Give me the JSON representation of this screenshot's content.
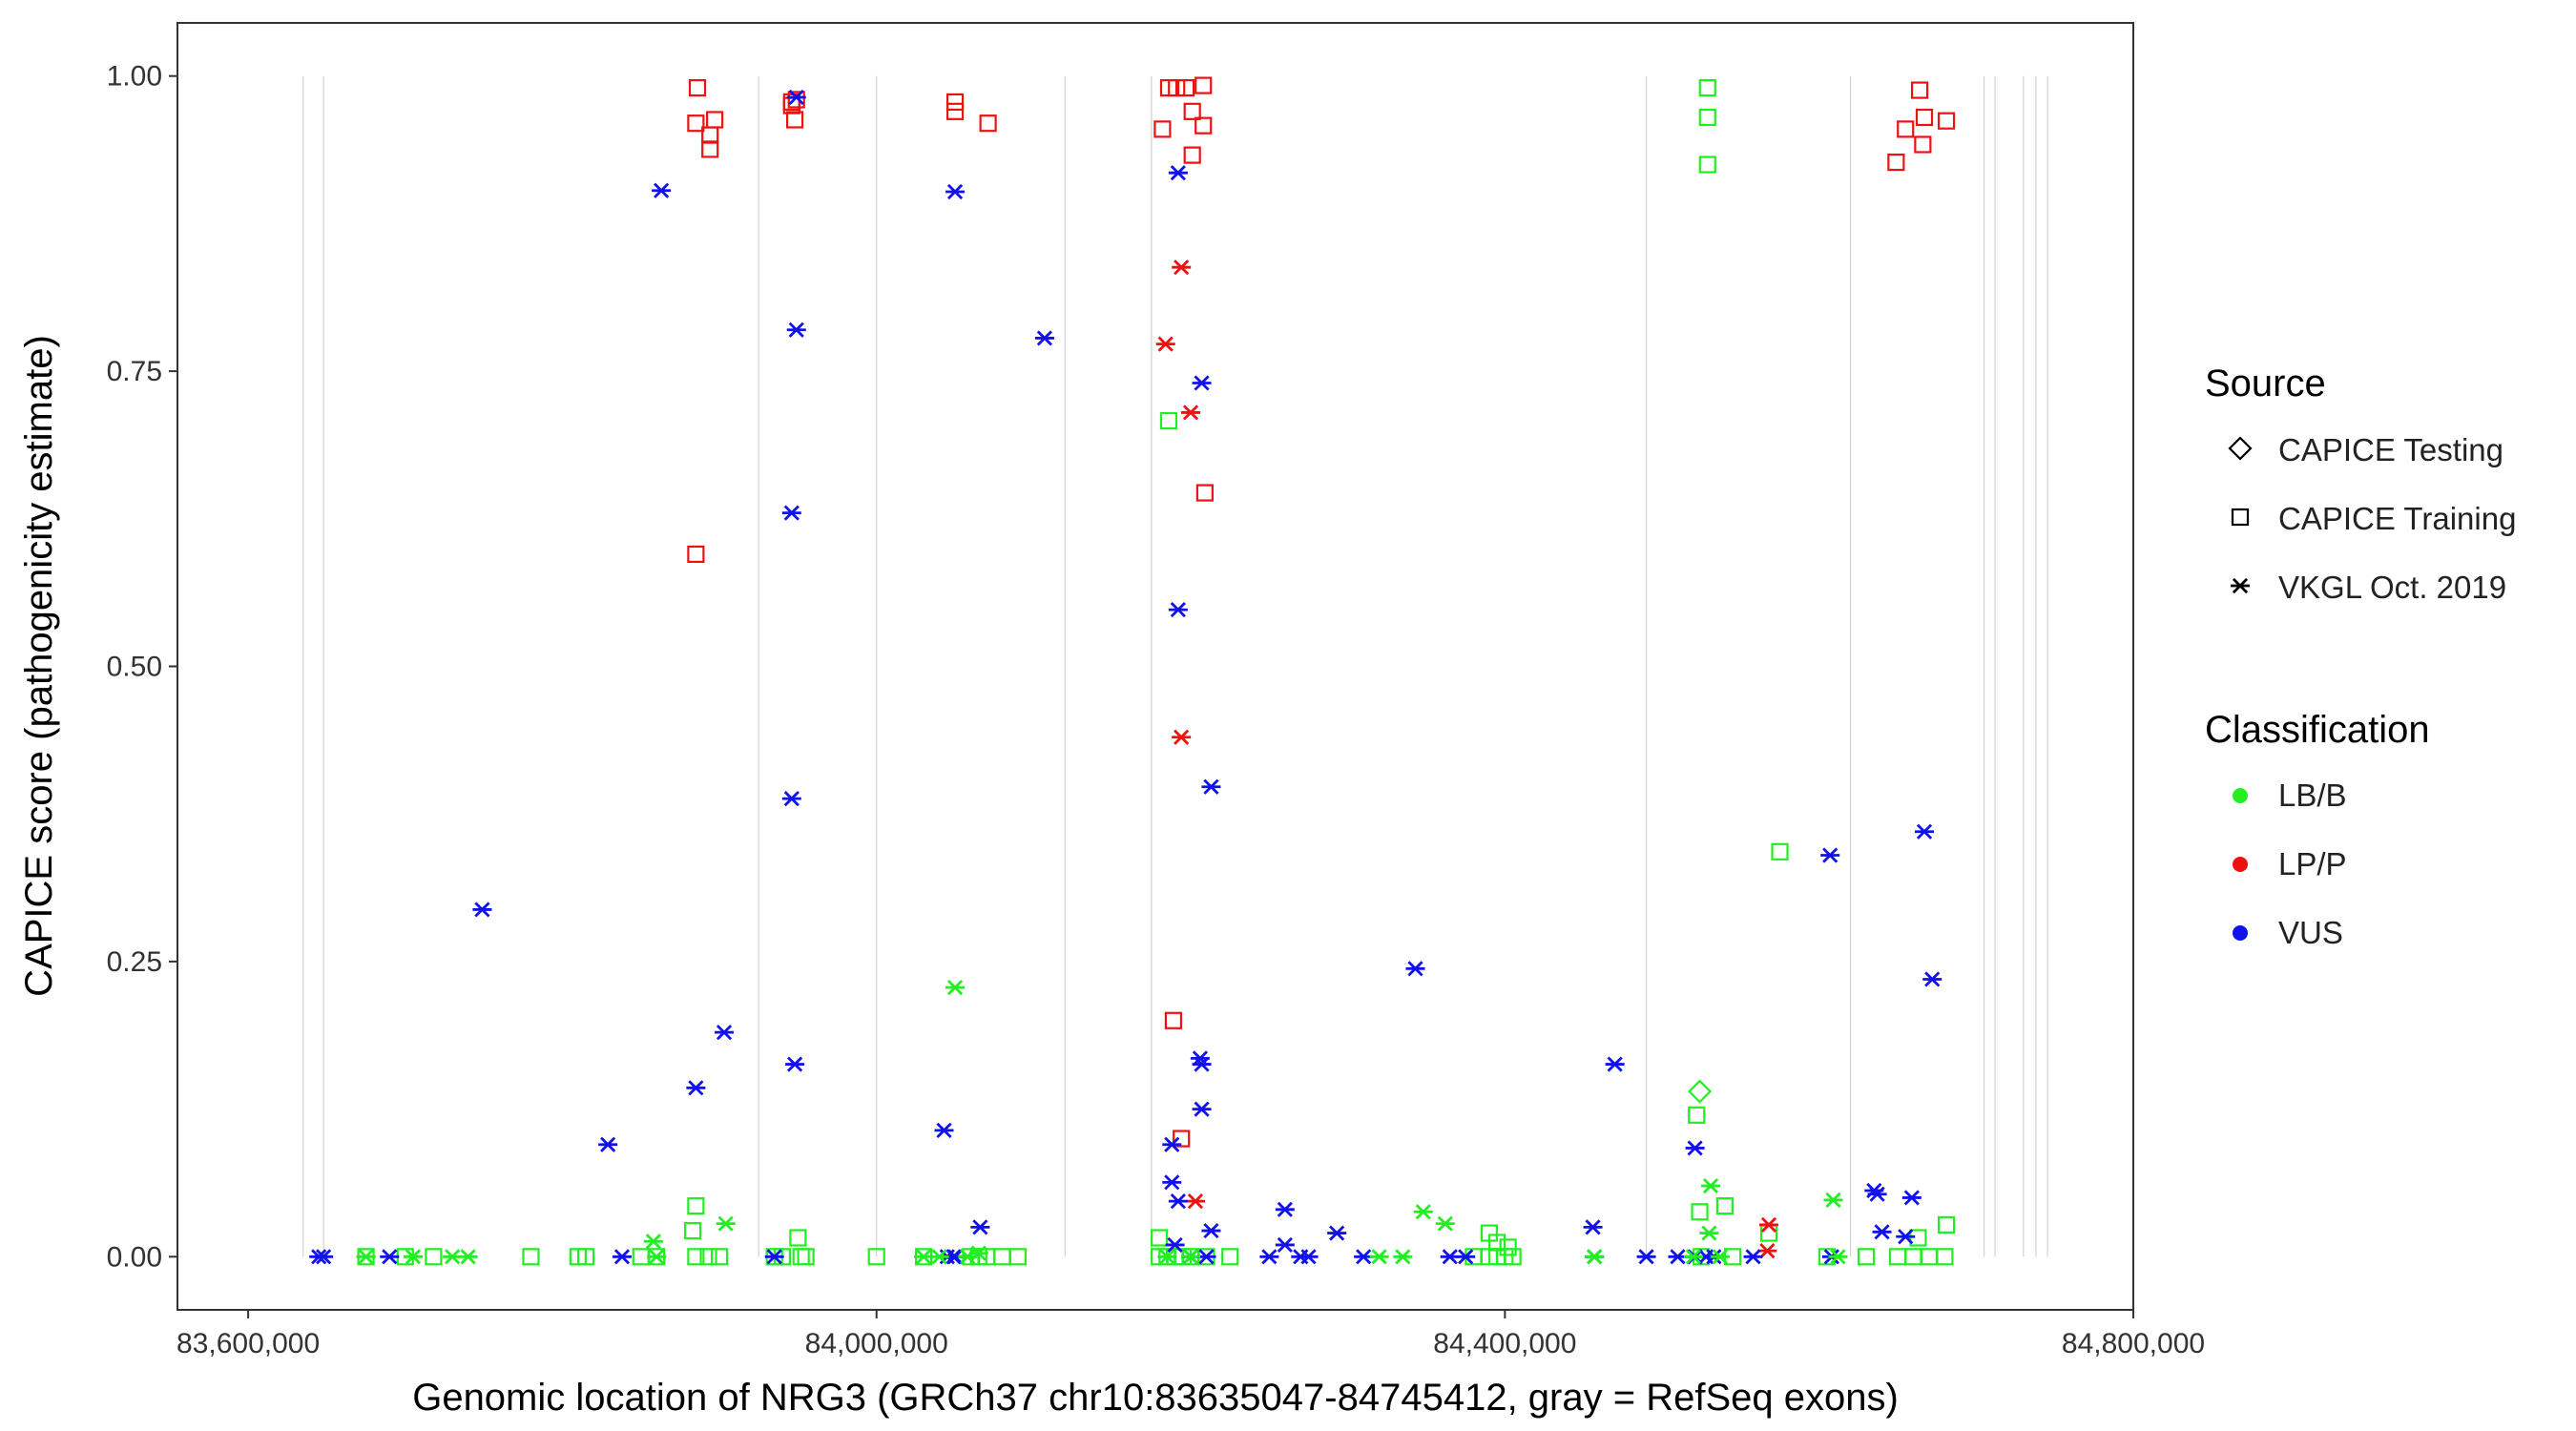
{
  "chart_data": {
    "type": "scatter",
    "title": "",
    "xlabel": "Genomic location of NRG3 (GRCh37 chr10:83635047-84745412, gray = RefSeq exons)",
    "ylabel": "CAPICE score (pathogenicity estimate)",
    "xlim": [
      83555000,
      84800000
    ],
    "ylim": [
      -0.045,
      1.045
    ],
    "xticks": [
      83600000,
      84000000,
      84400000,
      84800000
    ],
    "xtick_labels": [
      "83,600,000",
      "84,000,000",
      "84,400,000",
      "84,800,000"
    ],
    "yticks": [
      0,
      0.25,
      0.5,
      0.75,
      1.0
    ],
    "ytick_labels": [
      "0.00",
      "0.25",
      "0.50",
      "0.75",
      "1.00"
    ],
    "exon_lines": [
      83635047,
      83648000,
      83925000,
      84000000,
      84120000,
      84175000,
      84490000,
      84620000,
      84705000,
      84712000,
      84730000,
      84738000,
      84745412
    ],
    "legend": {
      "source_title": "Source",
      "source_entries": [
        {
          "label": "CAPICE Testing",
          "shape": "diamond"
        },
        {
          "label": "CAPICE Training",
          "shape": "square"
        },
        {
          "label": "VKGL Oct. 2019",
          "shape": "asterisk"
        }
      ],
      "class_title": "Classification",
      "class_entries": [
        {
          "label": "LB/B",
          "color": "#22ee22"
        },
        {
          "label": "LP/P",
          "color": "#ee1111"
        },
        {
          "label": "VUS",
          "color": "#1111ee"
        }
      ]
    },
    "colors": {
      "LB/B": "#22ee22",
      "LP/P": "#ee1111",
      "VUS": "#1111ee"
    },
    "points": [
      [
        "tr",
        "LP",
        83886000,
        0.99
      ],
      [
        "tr",
        "LP",
        83885000,
        0.96
      ],
      [
        "tr",
        "LP",
        83894000,
        0.95
      ],
      [
        "tr",
        "LP",
        83897000,
        0.963
      ],
      [
        "tr",
        "LP",
        83894000,
        0.938
      ],
      [
        "tr",
        "LP",
        83946000,
        0.978
      ],
      [
        "tr",
        "LP",
        83946000,
        0.975
      ],
      [
        "tr",
        "LP",
        83948000,
        0.963
      ],
      [
        "tr",
        "LP",
        83949000,
        0.98
      ],
      [
        "tr",
        "LP",
        84050000,
        0.978
      ],
      [
        "tr",
        "LP",
        84050000,
        0.97
      ],
      [
        "tr",
        "LP",
        84071000,
        0.96
      ],
      [
        "tr",
        "LP",
        84186000,
        0.99
      ],
      [
        "tr",
        "LP",
        84191000,
        0.99
      ],
      [
        "tr",
        "LP",
        84197000,
        0.99
      ],
      [
        "tr",
        "LP",
        84208000,
        0.992
      ],
      [
        "tr",
        "LP",
        84182000,
        0.955
      ],
      [
        "tr",
        "LP",
        84201000,
        0.97
      ],
      [
        "tr",
        "LP",
        84208000,
        0.958
      ],
      [
        "tr",
        "LP",
        84201000,
        0.933
      ],
      [
        "tr",
        "LP",
        84209000,
        0.647
      ],
      [
        "tr",
        "LP",
        84189000,
        0.2
      ],
      [
        "tr",
        "LP",
        84194000,
        0.1
      ],
      [
        "tr",
        "LP",
        83885000,
        0.595
      ],
      [
        "tr",
        "LP",
        84664000,
        0.988
      ],
      [
        "tr",
        "LP",
        84667000,
        0.965
      ],
      [
        "tr",
        "LP",
        84681000,
        0.962
      ],
      [
        "tr",
        "LP",
        84655000,
        0.955
      ],
      [
        "tr",
        "LP",
        84666000,
        0.942
      ],
      [
        "tr",
        "LP",
        84649000,
        0.927
      ],
      [
        "tr",
        "LB",
        84529000,
        0.99
      ],
      [
        "tr",
        "LB",
        84529000,
        0.965
      ],
      [
        "tr",
        "LB",
        84529000,
        0.925
      ],
      [
        "tr",
        "LB",
        84186000,
        0.708
      ],
      [
        "tr",
        "LB",
        84575000,
        0.343
      ],
      [
        "tr",
        "LB",
        84522000,
        0.12
      ],
      [
        "tr",
        "LB",
        84540000,
        0.043
      ],
      [
        "tr",
        "LB",
        84524000,
        0.038
      ],
      [
        "tr",
        "LB",
        83885000,
        0.043
      ],
      [
        "tr",
        "LB",
        83883000,
        0.022
      ],
      [
        "tr",
        "LB",
        83950000,
        0.016
      ],
      [
        "tr",
        "LB",
        84180000,
        0.016
      ],
      [
        "tr",
        "LB",
        84390000,
        0.02
      ],
      [
        "tr",
        "LB",
        84395000,
        0.012
      ],
      [
        "tr",
        "LB",
        84402000,
        0.008
      ],
      [
        "tr",
        "LB",
        84681000,
        0.027
      ],
      [
        "tr",
        "LB",
        84663000,
        0.016
      ],
      [
        "tr",
        "LB",
        84568000,
        0.02
      ],
      [
        "tr",
        "LB",
        83675000,
        0
      ],
      [
        "tr",
        "LB",
        83700000,
        0
      ],
      [
        "tr",
        "LB",
        83718000,
        0
      ],
      [
        "tr",
        "LB",
        83780000,
        0
      ],
      [
        "tr",
        "LB",
        83810000,
        0
      ],
      [
        "tr",
        "LB",
        83815000,
        0
      ],
      [
        "tr",
        "LB",
        83850000,
        0
      ],
      [
        "tr",
        "LB",
        83860000,
        0
      ],
      [
        "tr",
        "LB",
        83885000,
        0
      ],
      [
        "tr",
        "LB",
        83893000,
        0
      ],
      [
        "tr",
        "LB",
        83900000,
        0
      ],
      [
        "tr",
        "LB",
        83935000,
        0
      ],
      [
        "tr",
        "LB",
        83940000,
        0
      ],
      [
        "tr",
        "LB",
        83952000,
        0
      ],
      [
        "tr",
        "LB",
        83955000,
        0
      ],
      [
        "tr",
        "LB",
        84000000,
        0
      ],
      [
        "tr",
        "LB",
        84030000,
        0
      ],
      [
        "tr",
        "LB",
        84060000,
        0
      ],
      [
        "tr",
        "LB",
        84065000,
        0
      ],
      [
        "tr",
        "LB",
        84070000,
        0
      ],
      [
        "tr",
        "LB",
        84080000,
        0
      ],
      [
        "tr",
        "LB",
        84090000,
        0
      ],
      [
        "tr",
        "LB",
        84180000,
        0
      ],
      [
        "tr",
        "LB",
        84185000,
        0
      ],
      [
        "tr",
        "LB",
        84190000,
        0
      ],
      [
        "tr",
        "LB",
        84195000,
        0
      ],
      [
        "tr",
        "LB",
        84200000,
        0
      ],
      [
        "tr",
        "LB",
        84210000,
        0
      ],
      [
        "tr",
        "LB",
        84225000,
        0
      ],
      [
        "tr",
        "LB",
        84380000,
        0
      ],
      [
        "tr",
        "LB",
        84390000,
        0
      ],
      [
        "tr",
        "LB",
        84395000,
        0
      ],
      [
        "tr",
        "LB",
        84400000,
        0
      ],
      [
        "tr",
        "LB",
        84405000,
        0
      ],
      [
        "tr",
        "LB",
        84525000,
        0
      ],
      [
        "tr",
        "LB",
        84545000,
        0
      ],
      [
        "tr",
        "LB",
        84605000,
        0
      ],
      [
        "tr",
        "LB",
        84630000,
        0
      ],
      [
        "tr",
        "LB",
        84650000,
        0
      ],
      [
        "tr",
        "LB",
        84660000,
        0
      ],
      [
        "tr",
        "LB",
        84670000,
        0
      ],
      [
        "tr",
        "LB",
        84680000,
        0
      ],
      [
        "te",
        "LB",
        84524000,
        0.14
      ],
      [
        "vk",
        "LP",
        84194000,
        0.838
      ],
      [
        "vk",
        "LP",
        84184000,
        0.773
      ],
      [
        "vk",
        "LP",
        84200000,
        0.715
      ],
      [
        "vk",
        "LP",
        84194000,
        0.44
      ],
      [
        "vk",
        "LP",
        84203000,
        0.047
      ],
      [
        "vk",
        "LP",
        84568000,
        0.027
      ],
      [
        "vk",
        "LP",
        84567000,
        0.005
      ],
      [
        "vk",
        "VUS",
        83949000,
        0.982
      ],
      [
        "vk",
        "VUS",
        83863000,
        0.903
      ],
      [
        "vk",
        "VUS",
        84050000,
        0.902
      ],
      [
        "vk",
        "VUS",
        83949000,
        0.785
      ],
      [
        "vk",
        "VUS",
        84107000,
        0.778
      ],
      [
        "vk",
        "VUS",
        84192000,
        0.918
      ],
      [
        "vk",
        "VUS",
        84207000,
        0.74
      ],
      [
        "vk",
        "VUS",
        83946000,
        0.63
      ],
      [
        "vk",
        "VUS",
        84192000,
        0.548
      ],
      [
        "vk",
        "VUS",
        84213000,
        0.398
      ],
      [
        "vk",
        "VUS",
        83946000,
        0.388
      ],
      [
        "vk",
        "VUS",
        84607000,
        0.34
      ],
      [
        "vk",
        "VUS",
        84667000,
        0.36
      ],
      [
        "vk",
        "VUS",
        83749000,
        0.294
      ],
      [
        "vk",
        "VUS",
        84343000,
        0.244
      ],
      [
        "vk",
        "VUS",
        84672000,
        0.235
      ],
      [
        "vk",
        "VUS",
        83903000,
        0.19
      ],
      [
        "vk",
        "VUS",
        83948000,
        0.163
      ],
      [
        "vk",
        "VUS",
        84470000,
        0.163
      ],
      [
        "vk",
        "VUS",
        84206000,
        0.168
      ],
      [
        "vk",
        "VUS",
        84207000,
        0.163
      ],
      [
        "vk",
        "VUS",
        84207000,
        0.125
      ],
      [
        "vk",
        "VUS",
        83885000,
        0.143
      ],
      [
        "vk",
        "VUS",
        84043000,
        0.107
      ],
      [
        "vk",
        "VUS",
        83829000,
        0.095
      ],
      [
        "vk",
        "VUS",
        84188000,
        0.095
      ],
      [
        "vk",
        "VUS",
        84521000,
        0.092
      ],
      [
        "vk",
        "VUS",
        84188000,
        0.063
      ],
      [
        "vk",
        "VUS",
        84635000,
        0.056
      ],
      [
        "vk",
        "VUS",
        84637000,
        0.053
      ],
      [
        "vk",
        "VUS",
        84659000,
        0.05
      ],
      [
        "vk",
        "VUS",
        84192000,
        0.047
      ],
      [
        "vk",
        "VUS",
        84260000,
        0.04
      ],
      [
        "vk",
        "VUS",
        84066000,
        0.025
      ],
      [
        "vk",
        "VUS",
        84213000,
        0.022
      ],
      [
        "vk",
        "VUS",
        84293000,
        0.02
      ],
      [
        "vk",
        "VUS",
        84456000,
        0.025
      ],
      [
        "vk",
        "VUS",
        84640000,
        0.021
      ],
      [
        "vk",
        "VUS",
        84655000,
        0.017
      ],
      [
        "vk",
        "VUS",
        84190000,
        0.01
      ],
      [
        "vk",
        "VUS",
        84260000,
        0.01
      ],
      [
        "vk",
        "VUS",
        83645000,
        0
      ],
      [
        "vk",
        "VUS",
        83648000,
        0
      ],
      [
        "vk",
        "VUS",
        83690000,
        0
      ],
      [
        "vk",
        "VUS",
        83838000,
        0
      ],
      [
        "vk",
        "VUS",
        83935000,
        0
      ],
      [
        "vk",
        "VUS",
        84045000,
        0
      ],
      [
        "vk",
        "VUS",
        84049000,
        0
      ],
      [
        "vk",
        "VUS",
        84050000,
        0
      ],
      [
        "vk",
        "VUS",
        84200000,
        0
      ],
      [
        "vk",
        "VUS",
        84210000,
        0
      ],
      [
        "vk",
        "VUS",
        84250000,
        0
      ],
      [
        "vk",
        "VUS",
        84270000,
        0
      ],
      [
        "vk",
        "VUS",
        84275000,
        0
      ],
      [
        "vk",
        "VUS",
        84310000,
        0
      ],
      [
        "vk",
        "VUS",
        84365000,
        0
      ],
      [
        "vk",
        "VUS",
        84375000,
        0
      ],
      [
        "vk",
        "VUS",
        84457000,
        0
      ],
      [
        "vk",
        "VUS",
        84490000,
        0
      ],
      [
        "vk",
        "VUS",
        84510000,
        0
      ],
      [
        "vk",
        "VUS",
        84521000,
        0
      ],
      [
        "vk",
        "VUS",
        84528000,
        0
      ],
      [
        "vk",
        "VUS",
        84533000,
        0
      ],
      [
        "vk",
        "VUS",
        84558000,
        0
      ],
      [
        "vk",
        "VUS",
        84608000,
        0
      ],
      [
        "vk",
        "LB",
        84050000,
        0.228
      ],
      [
        "vk",
        "LB",
        84531000,
        0.06
      ],
      [
        "vk",
        "LB",
        84609000,
        0.048
      ],
      [
        "vk",
        "LB",
        84348000,
        0.038
      ],
      [
        "vk",
        "LB",
        84362000,
        0.028
      ],
      [
        "vk",
        "LB",
        83904000,
        0.028
      ],
      [
        "vk",
        "LB",
        84530000,
        0.02
      ],
      [
        "vk",
        "LB",
        83858000,
        0.013
      ],
      [
        "vk",
        "LB",
        84065000,
        0.003
      ],
      [
        "vk",
        "LB",
        83675000,
        0
      ],
      [
        "vk",
        "LB",
        83705000,
        0
      ],
      [
        "vk",
        "LB",
        83730000,
        0
      ],
      [
        "vk",
        "LB",
        83740000,
        0
      ],
      [
        "vk",
        "LB",
        83860000,
        0
      ],
      [
        "vk",
        "LB",
        84030000,
        0
      ],
      [
        "vk",
        "LB",
        84040000,
        0
      ],
      [
        "vk",
        "LB",
        84058000,
        0
      ],
      [
        "vk",
        "LB",
        84185000,
        0
      ],
      [
        "vk",
        "LB",
        84200000,
        0
      ],
      [
        "vk",
        "LB",
        84320000,
        0
      ],
      [
        "vk",
        "LB",
        84335000,
        0
      ],
      [
        "vk",
        "LB",
        84457000,
        0
      ],
      [
        "vk",
        "LB",
        84520000,
        0
      ],
      [
        "vk",
        "LB",
        84537000,
        0
      ],
      [
        "vk",
        "LB",
        84612000,
        0
      ]
    ]
  }
}
